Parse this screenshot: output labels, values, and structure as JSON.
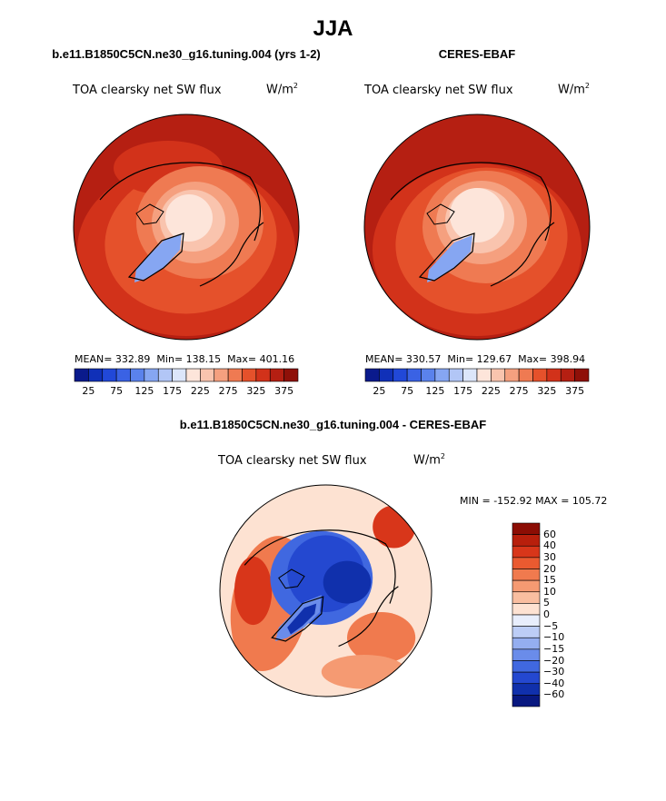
{
  "figure": {
    "title": "JJA"
  },
  "chart_data": [
    {
      "type": "heatmap",
      "projection": "north-polar-stereographic",
      "title": "b.e11.B1850C5CN.ne30_g16.tuning.004 (yrs 1-2)",
      "variable": "TOA clearsky net SW flux",
      "units": "W/m",
      "units_sup": "2",
      "stats": {
        "mean_label": "MEAN=",
        "mean": "332.89",
        "min_label": "Min=",
        "min": "138.15",
        "max_label": "Max=",
        "max": "401.16"
      },
      "colorbar": {
        "levels": [
          25,
          50,
          75,
          100,
          125,
          150,
          175,
          200,
          225,
          250,
          275,
          300,
          325,
          350,
          375
        ],
        "tick_labels": [
          "25",
          "75",
          "125",
          "175",
          "225",
          "275",
          "325",
          "375"
        ],
        "colors": [
          "#0a1a8c",
          "#1030b8",
          "#2148d8",
          "#3a62e4",
          "#5a82ec",
          "#86a6f2",
          "#b2c6f6",
          "#dce6fa",
          "#fde5da",
          "#f9c4ae",
          "#f5a07f",
          "#ef7a52",
          "#e5512b",
          "#d2321a",
          "#b51f12",
          "#8f1008"
        ]
      }
    },
    {
      "type": "heatmap",
      "projection": "north-polar-stereographic",
      "title": "CERES-EBAF",
      "variable": "TOA clearsky net SW flux",
      "units": "W/m",
      "units_sup": "2",
      "stats": {
        "mean_label": "MEAN=",
        "mean": "330.57",
        "min_label": "Min=",
        "min": "129.67",
        "max_label": "Max=",
        "max": "398.94"
      },
      "colorbar": {
        "levels": [
          25,
          50,
          75,
          100,
          125,
          150,
          175,
          200,
          225,
          250,
          275,
          300,
          325,
          350,
          375
        ],
        "tick_labels": [
          "25",
          "75",
          "125",
          "175",
          "225",
          "275",
          "325",
          "375"
        ],
        "colors": [
          "#0a1a8c",
          "#1030b8",
          "#2148d8",
          "#3a62e4",
          "#5a82ec",
          "#86a6f2",
          "#b2c6f6",
          "#dce6fa",
          "#fde5da",
          "#f9c4ae",
          "#f5a07f",
          "#ef7a52",
          "#e5512b",
          "#d2321a",
          "#b51f12",
          "#8f1008"
        ]
      }
    },
    {
      "type": "heatmap",
      "projection": "north-polar-stereographic",
      "title": "b.e11.B1850C5CN.ne30_g16.tuning.004 - CERES-EBAF",
      "variable": "TOA clearsky net SW flux",
      "units": "W/m",
      "units_sup": "2",
      "stats": {
        "min_label": "MIN =",
        "min": "-152.92",
        "max_label": "MAX =",
        "max": "105.72"
      },
      "colorbar": {
        "orientation": "vertical",
        "levels": [
          60,
          40,
          30,
          20,
          15,
          10,
          5,
          0,
          -5,
          -10,
          -15,
          -20,
          -30,
          -40,
          -60
        ],
        "tick_labels": [
          "60",
          "40",
          "30",
          "20",
          "15",
          "10",
          "5",
          "0",
          "−5",
          "−10",
          "−15",
          "−20",
          "−30",
          "−40",
          "−60"
        ],
        "colors": [
          "#8c0d04",
          "#b81f0c",
          "#d8361a",
          "#ea5a30",
          "#f07a4e",
          "#f59a72",
          "#f9bea0",
          "#fde2d2",
          "#e8eefc",
          "#bccdf6",
          "#94aef0",
          "#6a8cea",
          "#4068e0",
          "#2448d0",
          "#1030ac",
          "#081880"
        ]
      }
    }
  ]
}
